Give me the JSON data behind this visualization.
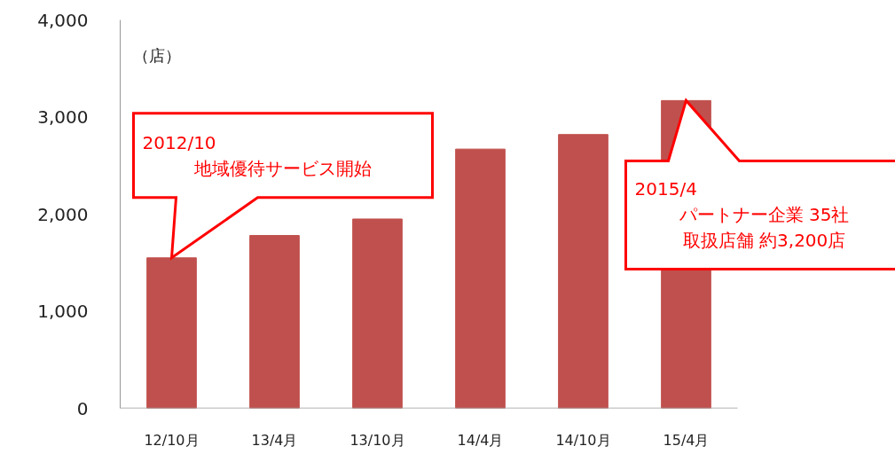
{
  "chart_data": {
    "type": "bar",
    "ylabel": "（店）",
    "categories": [
      "12/10月",
      "13/4月",
      "13/10月",
      "14/4月",
      "14/10月",
      "15/4月"
    ],
    "values": [
      1550,
      1780,
      1950,
      2670,
      2820,
      3170
    ],
    "color": "#c0504d",
    "ylim": [
      0,
      4000
    ],
    "yticks": [
      0,
      {
        "value": 1000,
        "label": "1,000"
      },
      {
        "value": 2000,
        "label": "2,000"
      },
      {
        "value": 3000,
        "label": "3,000"
      },
      {
        "value": 4000,
        "label": "4,000"
      }
    ],
    "grid": false,
    "annotations": [
      "2012/10",
      "地域優待サービス開始",
      "2015/4",
      "パートナー企業 35社",
      "取扱店舗 約3,200店"
    ]
  }
}
